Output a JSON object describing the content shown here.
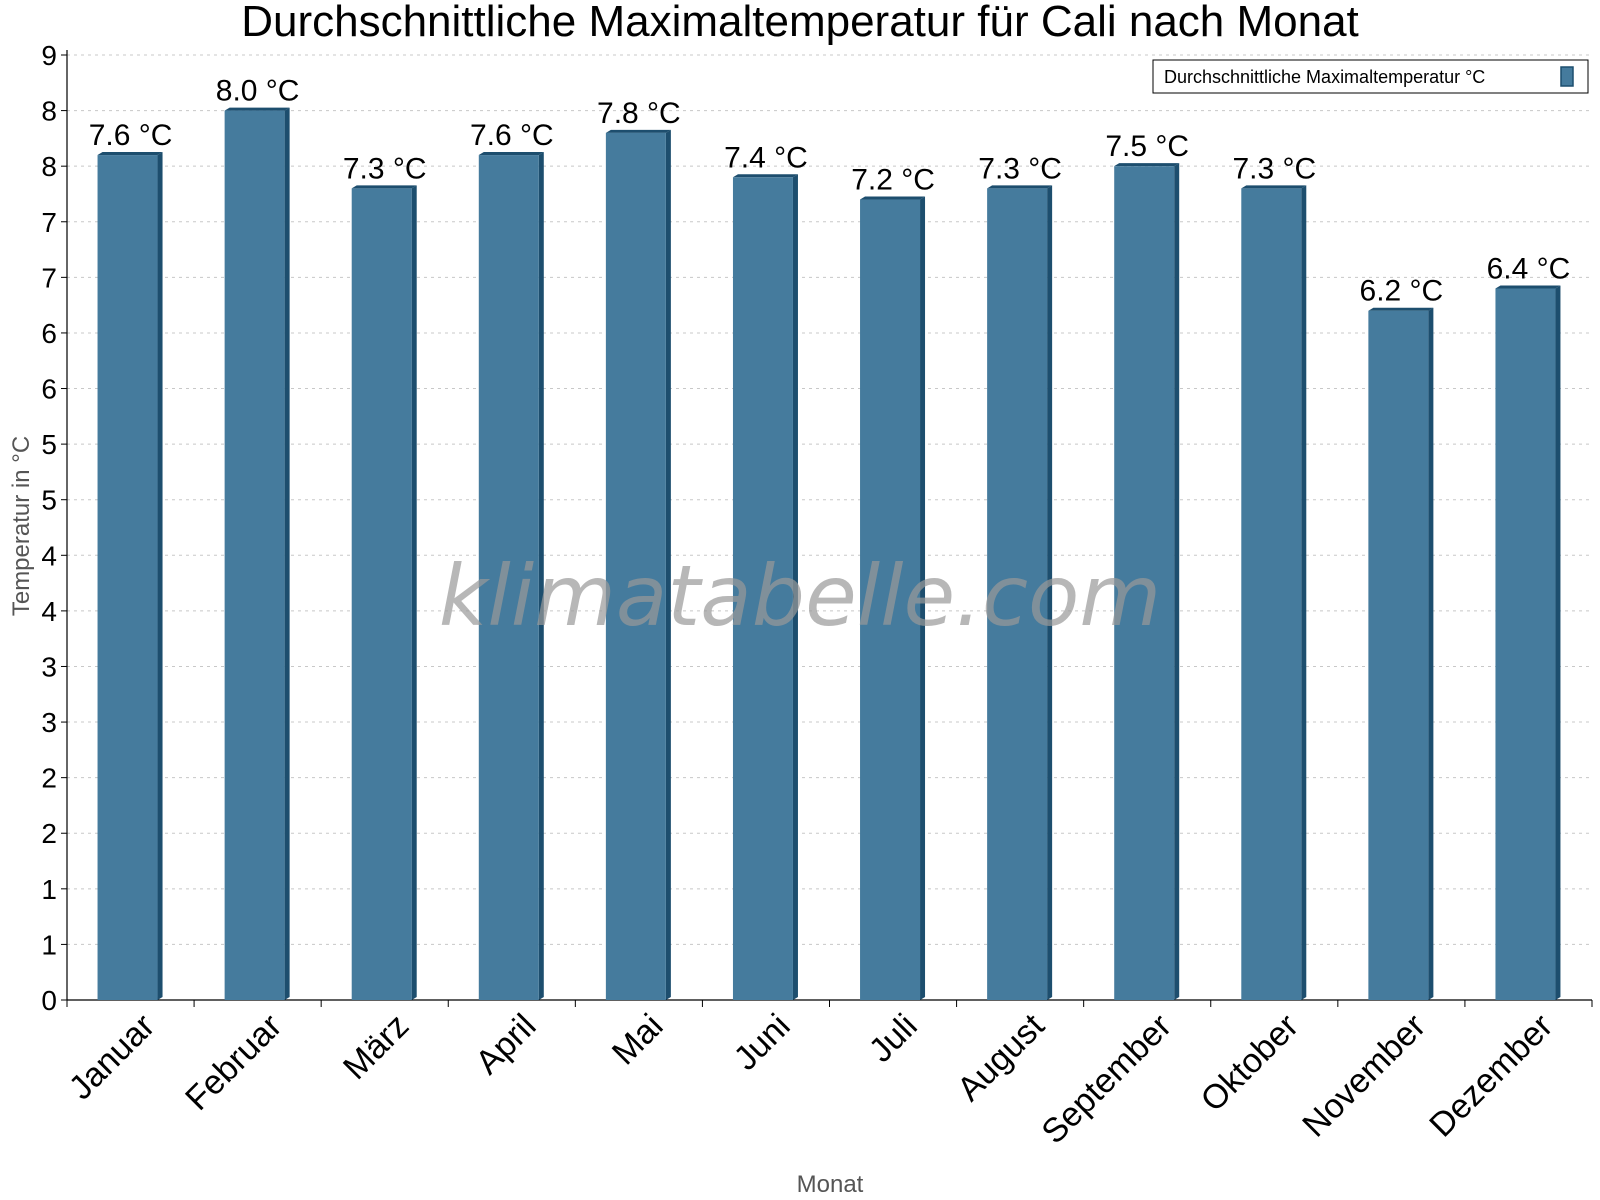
{
  "chart_data": {
    "type": "bar",
    "title": "Durchschnittliche Maximaltemperatur für Cali nach Monat",
    "xlabel": "Monat",
    "ylabel": "Temperatur in °C",
    "categories": [
      "Januar",
      "Februar",
      "März",
      "April",
      "Mai",
      "Juni",
      "Juli",
      "August",
      "September",
      "Oktober",
      "November",
      "Dezember"
    ],
    "series": [
      {
        "name": "Durchschnittliche Maximaltemperatur °C",
        "values": [
          7.6,
          8.0,
          7.3,
          7.6,
          7.8,
          7.4,
          7.2,
          7.3,
          7.5,
          7.3,
          6.2,
          6.4
        ],
        "labels": [
          "7.6 °C",
          "8.0 °C",
          "7.3 °C",
          "7.6 °C",
          "7.8 °C",
          "7.4 °C",
          "7.2 °C",
          "7.3 °C",
          "7.5 °C",
          "7.3 °C",
          "6.2 °C",
          "6.4 °C"
        ]
      }
    ],
    "y_tick_values": [
      0,
      0.5,
      1,
      1.5,
      2,
      2.5,
      3,
      3.5,
      4,
      4.5,
      5,
      5.5,
      6,
      6.5,
      7,
      7.5,
      8,
      8.5
    ],
    "y_tick_labels": [
      "0",
      "1",
      "1",
      "2",
      "2",
      "3",
      "3",
      "4",
      "4",
      "5",
      "5",
      "6",
      "6",
      "7",
      "7",
      "8",
      "8",
      "9"
    ],
    "ylim": [
      0,
      8.5
    ],
    "grid": true,
    "legend_position": "top-right",
    "colors": {
      "bar": "#457b9d",
      "bar_side": "#1d4e6e",
      "bar_top": "#1d4e6e",
      "grid": "#c8c8c8"
    }
  },
  "watermark": "klimatabelle.com"
}
